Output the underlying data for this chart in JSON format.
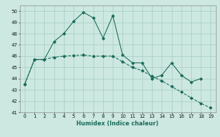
{
  "xlabel": "Humidex (Indice chaleur)",
  "x": [
    0,
    1,
    2,
    3,
    4,
    5,
    6,
    7,
    8,
    9,
    10,
    11,
    12,
    13,
    14,
    15,
    16,
    17,
    18,
    19
  ],
  "line1": [
    43.5,
    45.7,
    45.7,
    47.3,
    48.0,
    49.1,
    49.9,
    49.4,
    47.6,
    49.6,
    46.1,
    45.4,
    45.4,
    44.0,
    44.3,
    45.4,
    44.3,
    43.7,
    44.0,
    null
  ],
  "line2": [
    43.5,
    45.7,
    45.7,
    45.9,
    46.0,
    46.05,
    46.1,
    46.0,
    46.0,
    46.0,
    45.5,
    45.0,
    44.7,
    44.2,
    43.8,
    43.3,
    42.8,
    42.3,
    41.8,
    41.4
  ],
  "color": "#1a6b5a",
  "bg_color": "#cce8e0",
  "grid_color": "#aacfc8",
  "ylim": [
    41,
    50.5
  ],
  "yticks": [
    41,
    42,
    43,
    44,
    45,
    46,
    47,
    48,
    49,
    50
  ],
  "xlim": [
    -0.5,
    19.5
  ]
}
